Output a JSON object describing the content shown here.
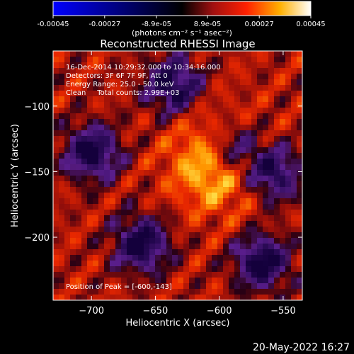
{
  "colorbar": {
    "ticks": [
      "-0.00045",
      "-0.00027",
      "-8.9e-05",
      "8.9e-05",
      "0.00027",
      "0.00045"
    ],
    "tick_values": [
      -0.00045,
      -0.00027,
      -8.9e-05,
      8.9e-05,
      0.00027,
      0.00045
    ],
    "range": [
      -0.00045,
      0.00045
    ],
    "units": "(photons cm⁻² s⁻¹ asec⁻²)",
    "colormap": "red-temperature with negative blue-to-black"
  },
  "chart_data": {
    "type": "heatmap",
    "title": "Reconstructed RHESSI Image",
    "xlabel": "Heliocentric X (arcsec)",
    "ylabel": "Heliocentric Y (arcsec)",
    "xlim": [
      -730,
      -535
    ],
    "ylim": [
      -248,
      -58
    ],
    "xticks": [
      -700,
      -650,
      -600,
      -550
    ],
    "yticks": [
      -100,
      -150,
      -200
    ],
    "xtick_labels": [
      "−700",
      "−650",
      "−600",
      "−550"
    ],
    "ytick_labels": [
      "−100",
      "−150",
      "−200"
    ],
    "peak": {
      "x": -600,
      "y": -143
    },
    "info_lines": [
      "16-Dec-2014 10:29:32.000 to 10:34:16.000",
      "Detectors: 3F 6F 7F 9F, Att 0",
      "Energy Range: 25.0 - 50.0 keV",
      "Clean     Total counts: 2.99E+03"
    ],
    "peak_label": "Position of Peak = [-600,-143]"
  },
  "footer": {
    "timestamp": "20-May-2022 16:27"
  }
}
